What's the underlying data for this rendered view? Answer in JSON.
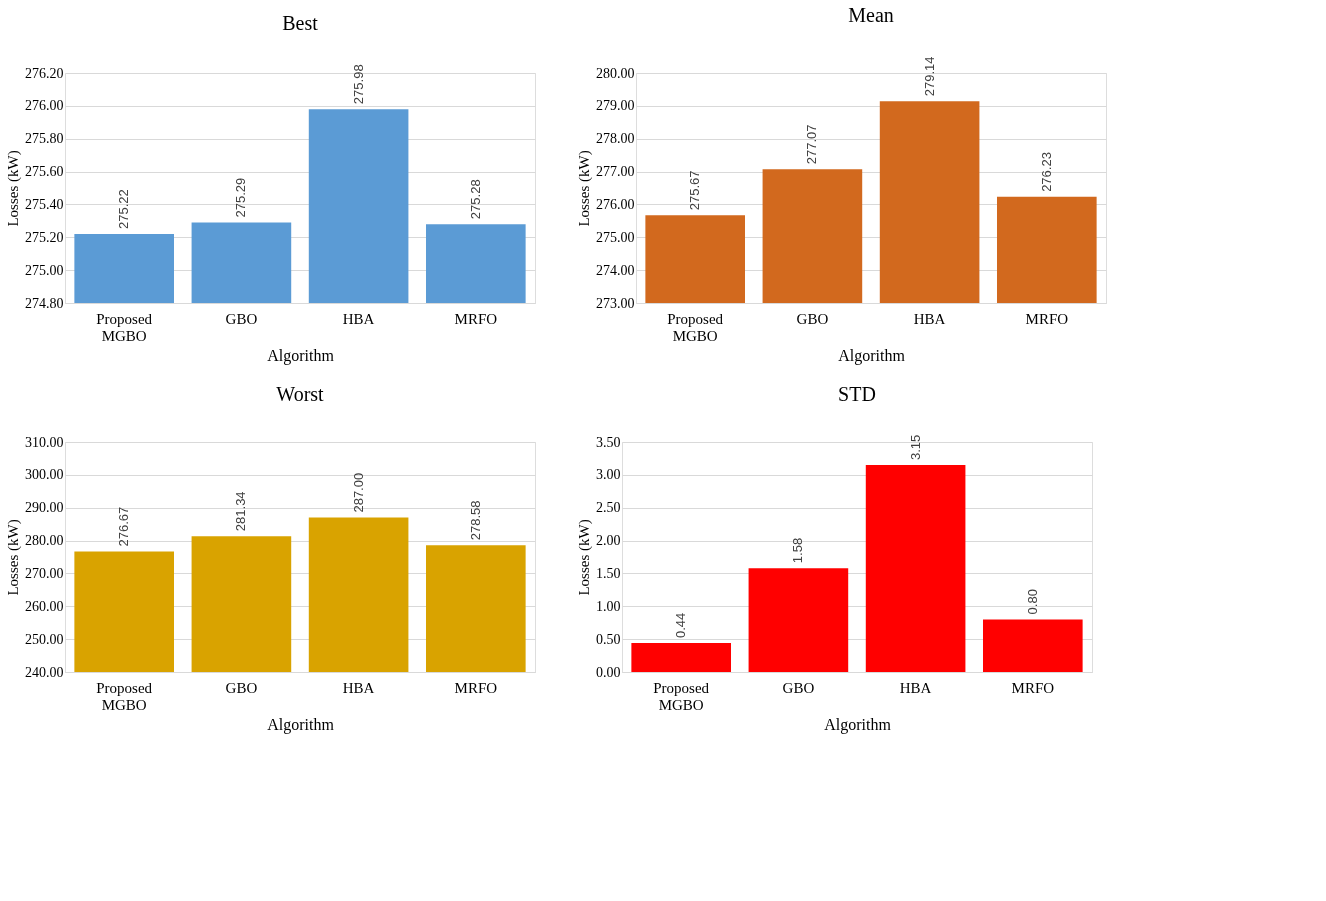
{
  "chart_data": [
    {
      "type": "bar",
      "title": "Best",
      "xlabel": "Algorithm",
      "ylabel": "Losses (kW)",
      "categories": [
        "Proposed MGBO",
        "GBO",
        "HBA",
        "MRFO"
      ],
      "values": [
        275.22,
        275.29,
        275.98,
        275.28
      ],
      "value_labels": [
        "275.22",
        "275.29",
        "275.98",
        "275.28"
      ],
      "color": "#5b9bd5",
      "ylim": [
        274.8,
        276.2
      ],
      "yticks": [
        {
          "value": 274.8,
          "label": "274.80"
        },
        {
          "value": 275.0,
          "label": "275.00"
        },
        {
          "value": 275.2,
          "label": "275.20"
        },
        {
          "value": 275.4,
          "label": "275.40"
        },
        {
          "value": 275.6,
          "label": "275.60"
        },
        {
          "value": 275.8,
          "label": "275.80"
        },
        {
          "value": 276.0,
          "label": "276.00"
        },
        {
          "value": 276.2,
          "label": "276.20"
        }
      ],
      "grid": "y"
    },
    {
      "type": "bar",
      "title": "Mean",
      "xlabel": "Algorithm",
      "ylabel": "Losses (kW)",
      "categories": [
        "Proposed MGBO",
        "GBO",
        "HBA",
        "MRFO"
      ],
      "values": [
        275.67,
        277.07,
        279.14,
        276.23
      ],
      "value_labels": [
        "275.67",
        "277.07",
        "279.14",
        "276.23"
      ],
      "color": "#d2691e",
      "ylim": [
        273,
        280
      ],
      "yticks": [
        {
          "value": 273,
          "label": "273.00"
        },
        {
          "value": 274,
          "label": "274.00"
        },
        {
          "value": 275,
          "label": "275.00"
        },
        {
          "value": 276,
          "label": "276.00"
        },
        {
          "value": 277,
          "label": "277.00"
        },
        {
          "value": 278,
          "label": "278.00"
        },
        {
          "value": 279,
          "label": "279.00"
        },
        {
          "value": 280,
          "label": "280.00"
        }
      ],
      "grid": "y"
    },
    {
      "type": "bar",
      "title": "Worst",
      "xlabel": "Algorithm",
      "ylabel": "Losses (kW)",
      "categories": [
        "Proposed MGBO",
        "GBO",
        "HBA",
        "MRFO"
      ],
      "values": [
        276.67,
        281.34,
        287.0,
        278.58
      ],
      "value_labels": [
        "276.67",
        "281.34",
        "287.00",
        "278.58"
      ],
      "color": "#d9a300",
      "ylim": [
        240,
        310
      ],
      "yticks": [
        {
          "value": 240,
          "label": "240.00"
        },
        {
          "value": 250,
          "label": "250.00"
        },
        {
          "value": 260,
          "label": "260.00"
        },
        {
          "value": 270,
          "label": "270.00"
        },
        {
          "value": 280,
          "label": "280.00"
        },
        {
          "value": 290,
          "label": "290.00"
        },
        {
          "value": 300,
          "label": "300.00"
        },
        {
          "value": 310,
          "label": "310.00"
        }
      ],
      "grid": "y"
    },
    {
      "type": "bar",
      "title": "STD",
      "xlabel": "Algorithm",
      "ylabel": "Losses (kW)",
      "categories": [
        "Proposed MGBO",
        "GBO",
        "HBA",
        "MRFO"
      ],
      "values": [
        0.44,
        1.58,
        3.15,
        0.8
      ],
      "value_labels": [
        "0.44",
        "1.58",
        "3.15",
        "0.80"
      ],
      "color": "#ff0000",
      "ylim": [
        0,
        3.5
      ],
      "yticks": [
        {
          "value": 0,
          "label": "0.00"
        },
        {
          "value": 0.5,
          "label": "0.50"
        },
        {
          "value": 1.0,
          "label": "1.00"
        },
        {
          "value": 1.5,
          "label": "1.50"
        },
        {
          "value": 2.0,
          "label": "2.00"
        },
        {
          "value": 2.5,
          "label": "2.50"
        },
        {
          "value": 3.0,
          "label": "3.00"
        },
        {
          "value": 3.5,
          "label": "3.50"
        }
      ],
      "grid": "y"
    }
  ]
}
